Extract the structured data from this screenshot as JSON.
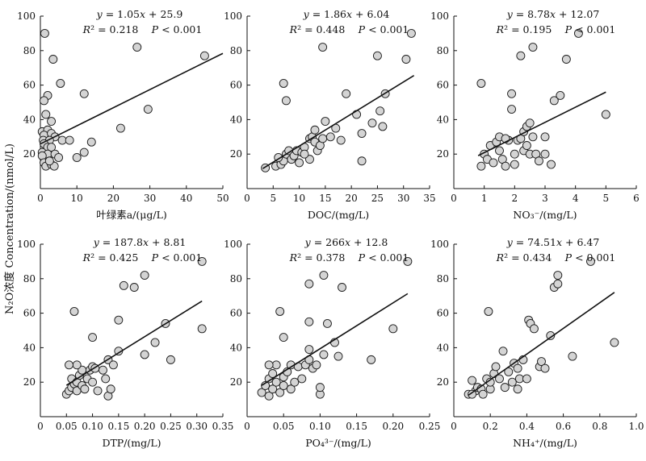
{
  "figure": {
    "y_axis_label": "N₂O浓度 Concentration/(nmol/L)"
  },
  "chart_data": [
    {
      "type": "scatter",
      "xlabel": "叶绿素a/(μg/L)",
      "ylabel": "N₂O浓度 Concentration/(nmol/L)",
      "xlim": [
        0,
        50
      ],
      "ylim": [
        0,
        100
      ],
      "xticks": [
        0,
        10,
        20,
        30,
        40,
        50
      ],
      "xtick_labels": [
        "0",
        "10",
        "20",
        "30",
        "40",
        "50"
      ],
      "yticks": [
        20,
        40,
        60,
        80,
        100
      ],
      "fit": {
        "slope": 1.05,
        "intercept": 25.9,
        "x_range": [
          0,
          50
        ]
      },
      "equation": "y = 1.05x + 25.9",
      "r2_label": "R² = 0.218",
      "p_label": "P < 0.001",
      "points": [
        [
          1.2,
          90
        ],
        [
          3.5,
          75
        ],
        [
          5.5,
          61
        ],
        [
          12,
          55
        ],
        [
          2,
          54
        ],
        [
          1,
          51
        ],
        [
          1.5,
          43
        ],
        [
          3,
          39
        ],
        [
          0.5,
          33
        ],
        [
          2,
          34
        ],
        [
          1,
          31
        ],
        [
          3,
          32
        ],
        [
          4,
          30
        ],
        [
          0.8,
          28
        ],
        [
          2.5,
          28
        ],
        [
          6,
          28
        ],
        [
          8,
          28
        ],
        [
          1,
          26
        ],
        [
          2,
          24
        ],
        [
          3,
          24
        ],
        [
          0.5,
          21
        ],
        [
          2,
          20
        ],
        [
          0.5,
          19
        ],
        [
          4,
          20
        ],
        [
          1,
          15
        ],
        [
          1.5,
          13
        ],
        [
          3,
          14
        ],
        [
          5,
          18
        ],
        [
          10,
          18
        ],
        [
          12,
          21
        ],
        [
          14,
          27
        ],
        [
          22,
          35
        ],
        [
          29.5,
          46
        ],
        [
          26.5,
          82
        ],
        [
          45,
          77
        ],
        [
          3.8,
          13
        ],
        [
          2.5,
          16
        ]
      ]
    },
    {
      "type": "scatter",
      "xlabel": "DOC/(mg/L)",
      "ylabel": "",
      "xlim": [
        0,
        35
      ],
      "ylim": [
        0,
        100
      ],
      "xticks": [
        0,
        5,
        10,
        15,
        20,
        25,
        30,
        35
      ],
      "xtick_labels": [
        "0",
        "5",
        "10",
        "15",
        "20",
        "25",
        "30",
        "35"
      ],
      "yticks": [
        20,
        40,
        60,
        80,
        100
      ],
      "fit": {
        "slope": 1.86,
        "intercept": 6.04,
        "x_range": [
          3,
          32
        ]
      },
      "equation": "y = 1.86x + 6.04",
      "r2_label": "R² = 0.448",
      "p_label": "P < 0.001",
      "points": [
        [
          3.5,
          12
        ],
        [
          5.5,
          13
        ],
        [
          6.5,
          14
        ],
        [
          7,
          16
        ],
        [
          6,
          18
        ],
        [
          7.5,
          20
        ],
        [
          8,
          22
        ],
        [
          8.5,
          17
        ],
        [
          9,
          19
        ],
        [
          9.5,
          22
        ],
        [
          10,
          15
        ],
        [
          10.5,
          21
        ],
        [
          11,
          24
        ],
        [
          12,
          29
        ],
        [
          12.5,
          30
        ],
        [
          13,
          27
        ],
        [
          13.5,
          22
        ],
        [
          14,
          25
        ],
        [
          14.5,
          29
        ],
        [
          12,
          17
        ],
        [
          15,
          39
        ],
        [
          16,
          30
        ],
        [
          17,
          35
        ],
        [
          18,
          28
        ],
        [
          19,
          55
        ],
        [
          21,
          43
        ],
        [
          22,
          32
        ],
        [
          22,
          16
        ],
        [
          24,
          38
        ],
        [
          25,
          77
        ],
        [
          25.5,
          45
        ],
        [
          26,
          36
        ],
        [
          26.5,
          55
        ],
        [
          30.5,
          75
        ],
        [
          31.5,
          90
        ],
        [
          14.5,
          82
        ],
        [
          7,
          61
        ],
        [
          7.5,
          51
        ],
        [
          11,
          20
        ],
        [
          13,
          34
        ]
      ]
    },
    {
      "type": "scatter",
      "xlabel": "NO₃⁻/(mg/L)",
      "ylabel": "",
      "xlim": [
        0,
        6
      ],
      "ylim": [
        0,
        100
      ],
      "xticks": [
        0,
        1,
        2,
        3,
        4,
        5,
        6
      ],
      "xtick_labels": [
        "0",
        "1",
        "2",
        "3",
        "4",
        "5",
        "6"
      ],
      "yticks": [
        20,
        40,
        60,
        80,
        100
      ],
      "fit": {
        "slope": 8.78,
        "intercept": 12.07,
        "x_range": [
          0.8,
          5
        ]
      },
      "equation": "y = 8.78x + 12.07",
      "r2_label": "R² = 0.195",
      "p_label": "P < 0.001",
      "points": [
        [
          0.9,
          61
        ],
        [
          0.9,
          13
        ],
        [
          1,
          20
        ],
        [
          1.1,
          17
        ],
        [
          1.2,
          25
        ],
        [
          1.3,
          15
        ],
        [
          1.4,
          27
        ],
        [
          1.5,
          30
        ],
        [
          1.5,
          22
        ],
        [
          1.6,
          17
        ],
        [
          1.7,
          13
        ],
        [
          1.8,
          28
        ],
        [
          1.9,
          55
        ],
        [
          1.9,
          46
        ],
        [
          2,
          14
        ],
        [
          2,
          20
        ],
        [
          2.1,
          28
        ],
        [
          2.2,
          29
        ],
        [
          2.3,
          33
        ],
        [
          2.3,
          22
        ],
        [
          2.4,
          36
        ],
        [
          2.5,
          38
        ],
        [
          2.5,
          20
        ],
        [
          2.6,
          30
        ],
        [
          2.7,
          20
        ],
        [
          2.8,
          16
        ],
        [
          3,
          20
        ],
        [
          3,
          30
        ],
        [
          3.2,
          14
        ],
        [
          3.3,
          51
        ],
        [
          3.5,
          54
        ],
        [
          3.7,
          75
        ],
        [
          4.1,
          90
        ],
        [
          2.2,
          77
        ],
        [
          2.6,
          82
        ],
        [
          5,
          43
        ],
        [
          1.7,
          29
        ],
        [
          2.4,
          25
        ]
      ]
    },
    {
      "type": "scatter",
      "xlabel": "DTP/(mg/L)",
      "ylabel": "N₂O浓度 Concentration/(nmol/L)",
      "xlim": [
        0,
        0.35
      ],
      "ylim": [
        0,
        100
      ],
      "xticks": [
        0,
        0.05,
        0.1,
        0.15,
        0.2,
        0.25,
        0.3,
        0.35
      ],
      "xtick_labels": [
        "0",
        "0.05",
        "0.10",
        "0.15",
        "0.20",
        "0.25",
        "0.30",
        "0.35"
      ],
      "yticks": [
        20,
        40,
        60,
        80,
        100
      ],
      "fit": {
        "slope": 187.8,
        "intercept": 8.81,
        "x_range": [
          0.05,
          0.31
        ]
      },
      "equation": "y = 187.8x + 8.81",
      "r2_label": "R² = 0.425",
      "p_label": "P < 0.001",
      "points": [
        [
          0.05,
          13
        ],
        [
          0.055,
          15
        ],
        [
          0.06,
          17
        ],
        [
          0.065,
          19
        ],
        [
          0.06,
          22
        ],
        [
          0.07,
          15
        ],
        [
          0.07,
          20
        ],
        [
          0.075,
          24
        ],
        [
          0.08,
          18
        ],
        [
          0.08,
          27
        ],
        [
          0.085,
          16
        ],
        [
          0.09,
          22
        ],
        [
          0.095,
          27
        ],
        [
          0.1,
          29
        ],
        [
          0.1,
          20
        ],
        [
          0.105,
          28
        ],
        [
          0.11,
          15
        ],
        [
          0.12,
          27
        ],
        [
          0.125,
          22
        ],
        [
          0.13,
          33
        ],
        [
          0.13,
          12
        ],
        [
          0.135,
          16
        ],
        [
          0.14,
          30
        ],
        [
          0.15,
          38
        ],
        [
          0.15,
          56
        ],
        [
          0.16,
          76
        ],
        [
          0.18,
          75
        ],
        [
          0.2,
          82
        ],
        [
          0.2,
          36
        ],
        [
          0.22,
          43
        ],
        [
          0.24,
          54
        ],
        [
          0.25,
          33
        ],
        [
          0.31,
          51
        ],
        [
          0.31,
          90
        ],
        [
          0.065,
          61
        ],
        [
          0.1,
          46
        ],
        [
          0.07,
          30
        ],
        [
          0.055,
          30
        ]
      ]
    },
    {
      "type": "scatter",
      "xlabel": "PO₄³⁻/(mg/L)",
      "ylabel": "",
      "xlim": [
        0,
        0.25
      ],
      "ylim": [
        0,
        100
      ],
      "xticks": [
        0,
        0.05,
        0.1,
        0.15,
        0.2,
        0.25
      ],
      "xtick_labels": [
        "0",
        "0.05",
        "0.10",
        "0.15",
        "0.20",
        "0.25"
      ],
      "yticks": [
        20,
        40,
        60,
        80,
        100
      ],
      "fit": {
        "slope": 266,
        "intercept": 12.8,
        "x_range": [
          0.02,
          0.22
        ]
      },
      "equation": "y = 266x + 12.8",
      "r2_label": "R² = 0.378",
      "p_label": "P < 0.001",
      "points": [
        [
          0.02,
          14
        ],
        [
          0.025,
          18
        ],
        [
          0.03,
          12
        ],
        [
          0.03,
          22
        ],
        [
          0.035,
          16
        ],
        [
          0.035,
          25
        ],
        [
          0.04,
          20
        ],
        [
          0.04,
          30
        ],
        [
          0.045,
          14
        ],
        [
          0.05,
          18
        ],
        [
          0.05,
          23
        ],
        [
          0.055,
          26
        ],
        [
          0.06,
          16
        ],
        [
          0.06,
          30
        ],
        [
          0.065,
          20
        ],
        [
          0.07,
          29
        ],
        [
          0.075,
          22
        ],
        [
          0.08,
          30
        ],
        [
          0.085,
          33
        ],
        [
          0.085,
          39
        ],
        [
          0.09,
          28
        ],
        [
          0.095,
          30
        ],
        [
          0.1,
          13
        ],
        [
          0.1,
          17
        ],
        [
          0.105,
          36
        ],
        [
          0.11,
          54
        ],
        [
          0.12,
          43
        ],
        [
          0.125,
          35
        ],
        [
          0.13,
          75
        ],
        [
          0.105,
          82
        ],
        [
          0.085,
          77
        ],
        [
          0.085,
          55
        ],
        [
          0.045,
          61
        ],
        [
          0.05,
          46
        ],
        [
          0.17,
          33
        ],
        [
          0.2,
          51
        ],
        [
          0.22,
          90
        ],
        [
          0.03,
          30
        ]
      ]
    },
    {
      "type": "scatter",
      "xlabel": "NH₄⁺/(mg/L)",
      "ylabel": "",
      "xlim": [
        0,
        1.0
      ],
      "ylim": [
        0,
        100
      ],
      "xticks": [
        0,
        0.2,
        0.4,
        0.6,
        0.8,
        1.0
      ],
      "xtick_labels": [
        "0",
        "0.2",
        "0.4",
        "0.6",
        "0.8",
        "1.0"
      ],
      "yticks": [
        20,
        40,
        60,
        80,
        100
      ],
      "fit": {
        "slope": 74.51,
        "intercept": 6.47,
        "x_range": [
          0.08,
          0.88
        ]
      },
      "equation": "y = 74.51x + 6.47",
      "r2_label": "R² = 0.434",
      "p_label": "P < 0.001",
      "points": [
        [
          0.08,
          13
        ],
        [
          0.1,
          21
        ],
        [
          0.12,
          15
        ],
        [
          0.13,
          17
        ],
        [
          0.15,
          16
        ],
        [
          0.16,
          13
        ],
        [
          0.18,
          22
        ],
        [
          0.2,
          16
        ],
        [
          0.2,
          20
        ],
        [
          0.22,
          25
        ],
        [
          0.23,
          29
        ],
        [
          0.25,
          22
        ],
        [
          0.27,
          38
        ],
        [
          0.28,
          17
        ],
        [
          0.3,
          26
        ],
        [
          0.32,
          20
        ],
        [
          0.33,
          31
        ],
        [
          0.35,
          16
        ],
        [
          0.36,
          22
        ],
        [
          0.38,
          33
        ],
        [
          0.4,
          22
        ],
        [
          0.41,
          56
        ],
        [
          0.42,
          54
        ],
        [
          0.44,
          51
        ],
        [
          0.47,
          29
        ],
        [
          0.48,
          32
        ],
        [
          0.5,
          28
        ],
        [
          0.53,
          47
        ],
        [
          0.55,
          75
        ],
        [
          0.57,
          82
        ],
        [
          0.57,
          77
        ],
        [
          0.65,
          35
        ],
        [
          0.75,
          90
        ],
        [
          0.88,
          43
        ],
        [
          0.19,
          61
        ],
        [
          0.35,
          28
        ],
        [
          0.1,
          13
        ]
      ]
    }
  ]
}
